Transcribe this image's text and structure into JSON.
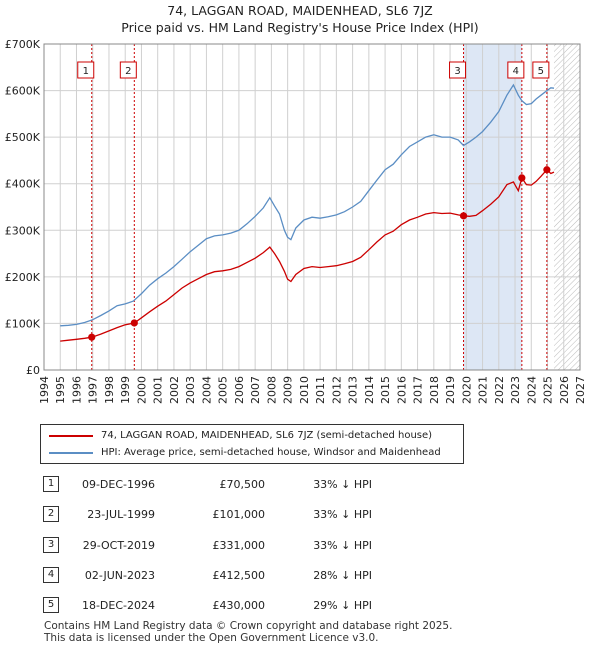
{
  "chart_data": {
    "type": "line",
    "title": "74, LAGGAN ROAD, MAIDENHEAD, SL6 7JZ",
    "subtitle": "Price paid vs. HM Land Registry's House Price Index (HPI)",
    "xlim": [
      1994,
      2027
    ],
    "ylim": [
      0,
      700000
    ],
    "y_ticks": [
      0,
      100000,
      200000,
      300000,
      400000,
      500000,
      600000,
      700000
    ],
    "y_tick_labels": [
      "£0",
      "£100K",
      "£200K",
      "£300K",
      "£400K",
      "£500K",
      "£600K",
      "£700K"
    ],
    "x_ticks": [
      1994,
      1995,
      1996,
      1997,
      1998,
      1999,
      2000,
      2001,
      2002,
      2003,
      2004,
      2005,
      2006,
      2007,
      2008,
      2009,
      2010,
      2011,
      2012,
      2013,
      2014,
      2015,
      2016,
      2017,
      2018,
      2019,
      2020,
      2021,
      2022,
      2023,
      2024,
      2025,
      2026,
      2027
    ],
    "grid": true,
    "future_start": 2025.4,
    "shaded_ranges": [
      [
        2019.83,
        2023.42
      ]
    ],
    "series": [
      {
        "name": "74, LAGGAN ROAD, MAIDENHEAD, SL6 7JZ (semi-detached house)",
        "color": "#cc0000",
        "points": [
          [
            1995.0,
            62000
          ],
          [
            1995.5,
            64000
          ],
          [
            1996.0,
            66000
          ],
          [
            1996.5,
            68000
          ],
          [
            1996.94,
            70500
          ],
          [
            1997.5,
            77000
          ],
          [
            1998.0,
            84000
          ],
          [
            1998.5,
            91000
          ],
          [
            1999.0,
            97000
          ],
          [
            1999.56,
            101000
          ],
          [
            2000.0,
            112000
          ],
          [
            2000.5,
            125000
          ],
          [
            2001.0,
            137000
          ],
          [
            2001.5,
            148000
          ],
          [
            2002.0,
            162000
          ],
          [
            2002.5,
            176000
          ],
          [
            2003.0,
            187000
          ],
          [
            2003.5,
            196000
          ],
          [
            2004.0,
            205000
          ],
          [
            2004.5,
            211000
          ],
          [
            2005.0,
            213000
          ],
          [
            2005.5,
            216000
          ],
          [
            2006.0,
            222000
          ],
          [
            2006.5,
            231000
          ],
          [
            2007.0,
            240000
          ],
          [
            2007.5,
            252000
          ],
          [
            2007.9,
            264000
          ],
          [
            2008.2,
            250000
          ],
          [
            2008.5,
            233000
          ],
          [
            2008.8,
            212000
          ],
          [
            2009.0,
            195000
          ],
          [
            2009.2,
            190000
          ],
          [
            2009.5,
            205000
          ],
          [
            2010.0,
            218000
          ],
          [
            2010.5,
            222000
          ],
          [
            2011.0,
            220000
          ],
          [
            2011.5,
            222000
          ],
          [
            2012.0,
            224000
          ],
          [
            2012.5,
            228000
          ],
          [
            2013.0,
            233000
          ],
          [
            2013.5,
            242000
          ],
          [
            2014.0,
            258000
          ],
          [
            2014.5,
            275000
          ],
          [
            2015.0,
            290000
          ],
          [
            2015.5,
            298000
          ],
          [
            2016.0,
            312000
          ],
          [
            2016.5,
            322000
          ],
          [
            2017.0,
            328000
          ],
          [
            2017.5,
            335000
          ],
          [
            2018.0,
            338000
          ],
          [
            2018.5,
            336000
          ],
          [
            2019.0,
            337000
          ],
          [
            2019.5,
            333000
          ],
          [
            2019.83,
            331000
          ],
          [
            2020.2,
            330000
          ],
          [
            2020.6,
            332000
          ],
          [
            2021.0,
            342000
          ],
          [
            2021.5,
            356000
          ],
          [
            2022.0,
            372000
          ],
          [
            2022.5,
            398000
          ],
          [
            2022.9,
            404000
          ],
          [
            2023.2,
            385000
          ],
          [
            2023.42,
            412500
          ],
          [
            2023.7,
            398000
          ],
          [
            2024.0,
            397000
          ],
          [
            2024.3,
            405000
          ],
          [
            2024.6,
            416000
          ],
          [
            2024.96,
            430000
          ],
          [
            2025.2,
            422000
          ],
          [
            2025.4,
            425000
          ]
        ]
      },
      {
        "name": "HPI: Average price, semi-detached house, Windsor and Maidenhead",
        "color": "#5b8ec4",
        "points": [
          [
            1995.0,
            95000
          ],
          [
            1995.5,
            96000
          ],
          [
            1996.0,
            98000
          ],
          [
            1996.5,
            102000
          ],
          [
            1997.0,
            108000
          ],
          [
            1997.5,
            117000
          ],
          [
            1998.0,
            127000
          ],
          [
            1998.5,
            138000
          ],
          [
            1999.0,
            142000
          ],
          [
            1999.5,
            148000
          ],
          [
            2000.0,
            164000
          ],
          [
            2000.5,
            182000
          ],
          [
            2001.0,
            196000
          ],
          [
            2001.5,
            208000
          ],
          [
            2002.0,
            222000
          ],
          [
            2002.5,
            238000
          ],
          [
            2003.0,
            254000
          ],
          [
            2003.5,
            268000
          ],
          [
            2004.0,
            282000
          ],
          [
            2004.5,
            288000
          ],
          [
            2005.0,
            290000
          ],
          [
            2005.5,
            294000
          ],
          [
            2006.0,
            300000
          ],
          [
            2006.5,
            314000
          ],
          [
            2007.0,
            330000
          ],
          [
            2007.5,
            348000
          ],
          [
            2007.9,
            370000
          ],
          [
            2008.2,
            352000
          ],
          [
            2008.5,
            335000
          ],
          [
            2008.8,
            300000
          ],
          [
            2009.0,
            285000
          ],
          [
            2009.2,
            280000
          ],
          [
            2009.5,
            305000
          ],
          [
            2010.0,
            322000
          ],
          [
            2010.5,
            328000
          ],
          [
            2011.0,
            326000
          ],
          [
            2011.5,
            329000
          ],
          [
            2012.0,
            333000
          ],
          [
            2012.5,
            340000
          ],
          [
            2013.0,
            350000
          ],
          [
            2013.5,
            362000
          ],
          [
            2014.0,
            385000
          ],
          [
            2014.5,
            408000
          ],
          [
            2015.0,
            430000
          ],
          [
            2015.5,
            442000
          ],
          [
            2016.0,
            462000
          ],
          [
            2016.5,
            480000
          ],
          [
            2017.0,
            490000
          ],
          [
            2017.5,
            500000
          ],
          [
            2018.0,
            505000
          ],
          [
            2018.5,
            500000
          ],
          [
            2019.0,
            500000
          ],
          [
            2019.5,
            494000
          ],
          [
            2019.83,
            482000
          ],
          [
            2020.2,
            490000
          ],
          [
            2020.6,
            500000
          ],
          [
            2021.0,
            512000
          ],
          [
            2021.5,
            532000
          ],
          [
            2022.0,
            555000
          ],
          [
            2022.5,
            590000
          ],
          [
            2022.9,
            612000
          ],
          [
            2023.2,
            590000
          ],
          [
            2023.42,
            578000
          ],
          [
            2023.7,
            570000
          ],
          [
            2024.0,
            572000
          ],
          [
            2024.3,
            582000
          ],
          [
            2024.6,
            590000
          ],
          [
            2024.96,
            600000
          ],
          [
            2025.2,
            606000
          ],
          [
            2025.4,
            605000
          ]
        ]
      }
    ],
    "sales": [
      {
        "label": "1",
        "date": "09-DEC-1996",
        "x": 1996.94,
        "price": 70500,
        "price_label": "£70,500",
        "hpi_diff": "33% ↓ HPI"
      },
      {
        "label": "2",
        "date": "23-JUL-1999",
        "x": 1999.56,
        "price": 101000,
        "price_label": "£101,000",
        "hpi_diff": "33% ↓ HPI"
      },
      {
        "label": "3",
        "date": "29-OCT-2019",
        "x": 2019.83,
        "price": 331000,
        "price_label": "£331,000",
        "hpi_diff": "33% ↓ HPI"
      },
      {
        "label": "4",
        "date": "02-JUN-2023",
        "x": 2023.42,
        "price": 412500,
        "price_label": "£412,500",
        "hpi_diff": "28% ↓ HPI"
      },
      {
        "label": "5",
        "date": "18-DEC-2024",
        "x": 2024.96,
        "price": 430000,
        "price_label": "£430,000",
        "hpi_diff": "29% ↓ HPI"
      }
    ]
  },
  "legend": {
    "property_label": "74, LAGGAN ROAD, MAIDENHEAD, SL6 7JZ (semi-detached house)",
    "hpi_label": "HPI: Average price, semi-detached house, Windsor and Maidenhead"
  },
  "colors": {
    "property": "#cc0000",
    "hpi": "#5b8ec4",
    "shade": "#dde7f5",
    "grid": "#d0d0d0"
  },
  "footer": {
    "line1": "Contains HM Land Registry data © Crown copyright and database right 2025.",
    "line2": "This data is licensed under the Open Government Licence v3.0."
  }
}
